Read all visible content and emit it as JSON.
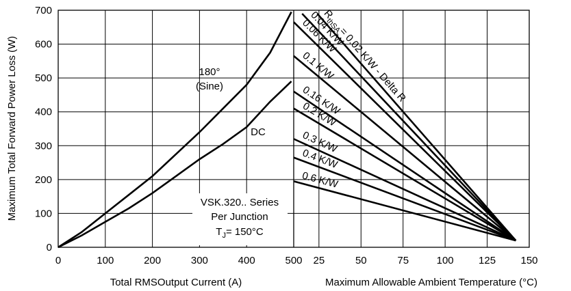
{
  "chart_data": {
    "type": "line",
    "left_panel": {
      "xlabel": "Total RMSOutput Current (A)",
      "ylabel": "Maximum Total Forward Power Loss (W)",
      "xlim": [
        0,
        500
      ],
      "ylim": [
        0,
        700
      ],
      "x_ticks": [
        "0",
        "100",
        "200",
        "300",
        "400",
        "500"
      ],
      "y_ticks": [
        "0",
        "100",
        "200",
        "300",
        "400",
        "500",
        "600",
        "700"
      ],
      "grid": true,
      "series": [
        {
          "name": "180° (Sine)",
          "label_line1": "180°",
          "label_line2": "(Sine)",
          "x": [
            0,
            50,
            100,
            150,
            200,
            250,
            300,
            350,
            400,
            450,
            495
          ],
          "y": [
            0,
            45,
            100,
            155,
            210,
            275,
            340,
            410,
            480,
            575,
            695
          ]
        },
        {
          "name": "DC",
          "label": "DC",
          "x": [
            0,
            50,
            100,
            150,
            200,
            250,
            300,
            350,
            400,
            450,
            495
          ],
          "y": [
            0,
            35,
            75,
            115,
            160,
            210,
            260,
            305,
            355,
            430,
            490
          ]
        }
      ],
      "annotation": {
        "line1": "VSK.320.. Series",
        "line2": "Per Junction",
        "line3": "T",
        "line3_sub": "J",
        "line3_rest": "= 150°C"
      }
    },
    "right_panel": {
      "xlabel": "Maximum Allowable Ambient Temperature (°C)",
      "xlim": [
        10,
        150
      ],
      "ylim": [
        0,
        700
      ],
      "x_ticks": [
        "25",
        "50",
        "75",
        "100",
        "125",
        "150"
      ],
      "grid": true,
      "end_point": {
        "x": 142,
        "y": 20
      },
      "series": [
        {
          "label": "R",
          "sub": "thSA",
          "rest": "= 0.02 K/W - Delta R",
          "start": {
            "x": 24,
            "y": 690
          }
        },
        {
          "label": "0.04 K/W",
          "start": {
            "x": 15,
            "y": 690
          }
        },
        {
          "label": "0.06 K/W",
          "start": {
            "x": 10,
            "y": 665
          }
        },
        {
          "label": "0.1 K/W",
          "start": {
            "x": 10,
            "y": 565
          }
        },
        {
          "label": "0.16 K/W",
          "start": {
            "x": 10,
            "y": 460
          }
        },
        {
          "label": "0.2 K/W",
          "start": {
            "x": 10,
            "y": 410
          }
        },
        {
          "label": "0.3 K/W",
          "start": {
            "x": 10,
            "y": 320
          }
        },
        {
          "label": "0.4 K/W",
          "start": {
            "x": 10,
            "y": 265
          }
        },
        {
          "label": "0.6 K/W",
          "start": {
            "x": 10,
            "y": 195
          }
        }
      ]
    }
  }
}
